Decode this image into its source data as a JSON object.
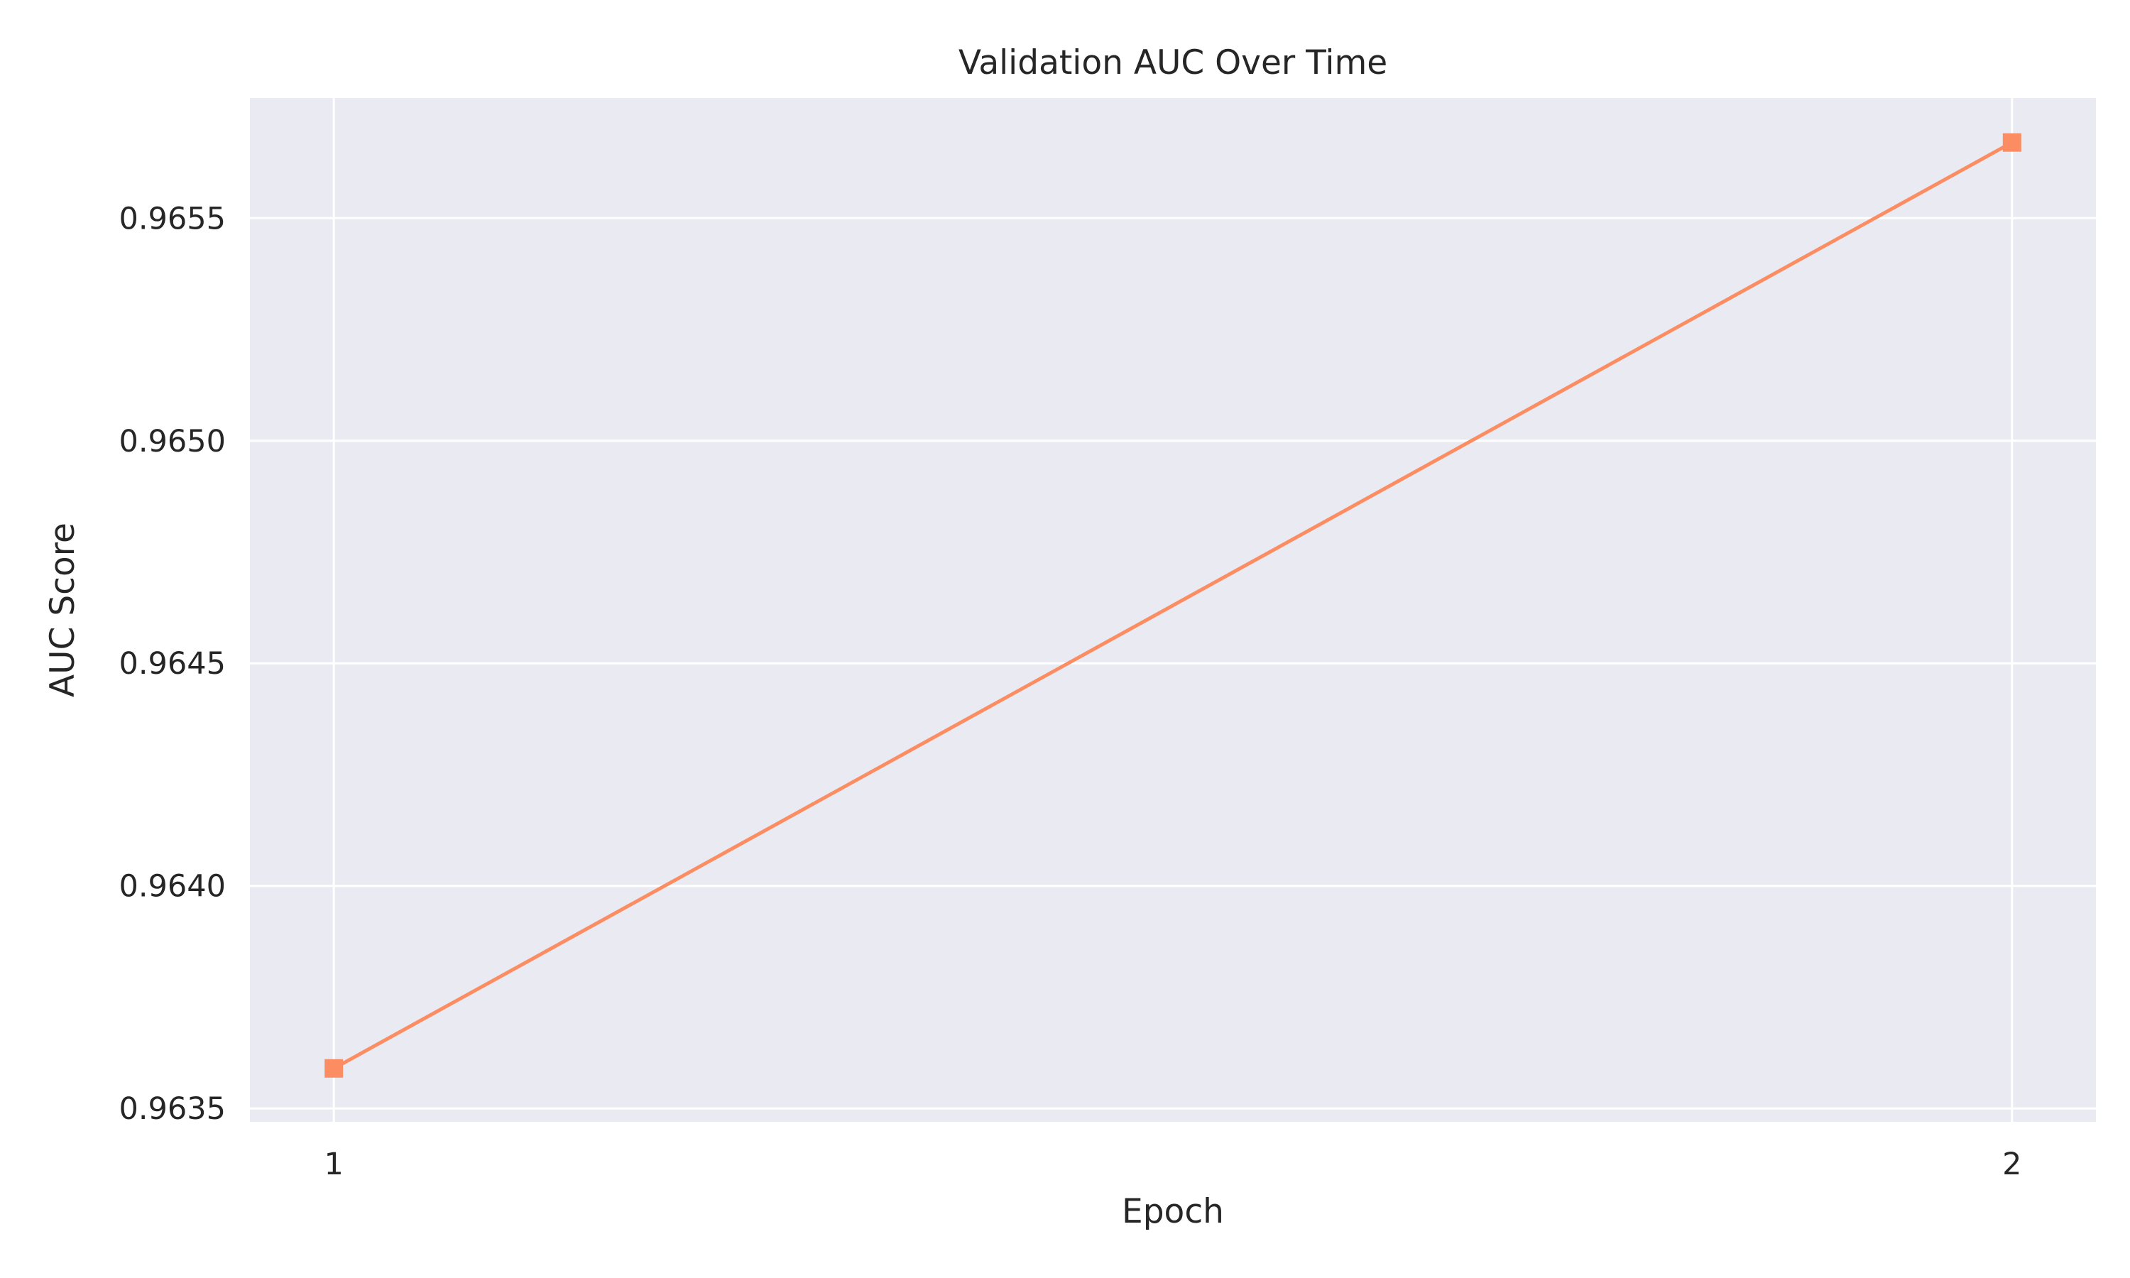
{
  "chart_data": {
    "type": "line",
    "title": "Validation AUC Over Time",
    "xlabel": "Epoch",
    "ylabel": "AUC Score",
    "x": [
      1,
      2
    ],
    "xticks": [
      "1",
      "2"
    ],
    "yticks": [
      "0.9635",
      "0.9640",
      "0.9645",
      "0.9650",
      "0.9655"
    ],
    "ytick_values": [
      0.9635,
      0.964,
      0.9645,
      0.965,
      0.9655
    ],
    "ylim": [
      0.96347,
      0.96577
    ],
    "xlim": [
      0.95,
      2.05
    ],
    "grid": true,
    "series": [
      {
        "values": [
          0.96359,
          0.96567
        ],
        "color": "#fc8d62",
        "marker": "square"
      }
    ],
    "background": "#eaeaf2",
    "grid_color": "#ffffff"
  }
}
